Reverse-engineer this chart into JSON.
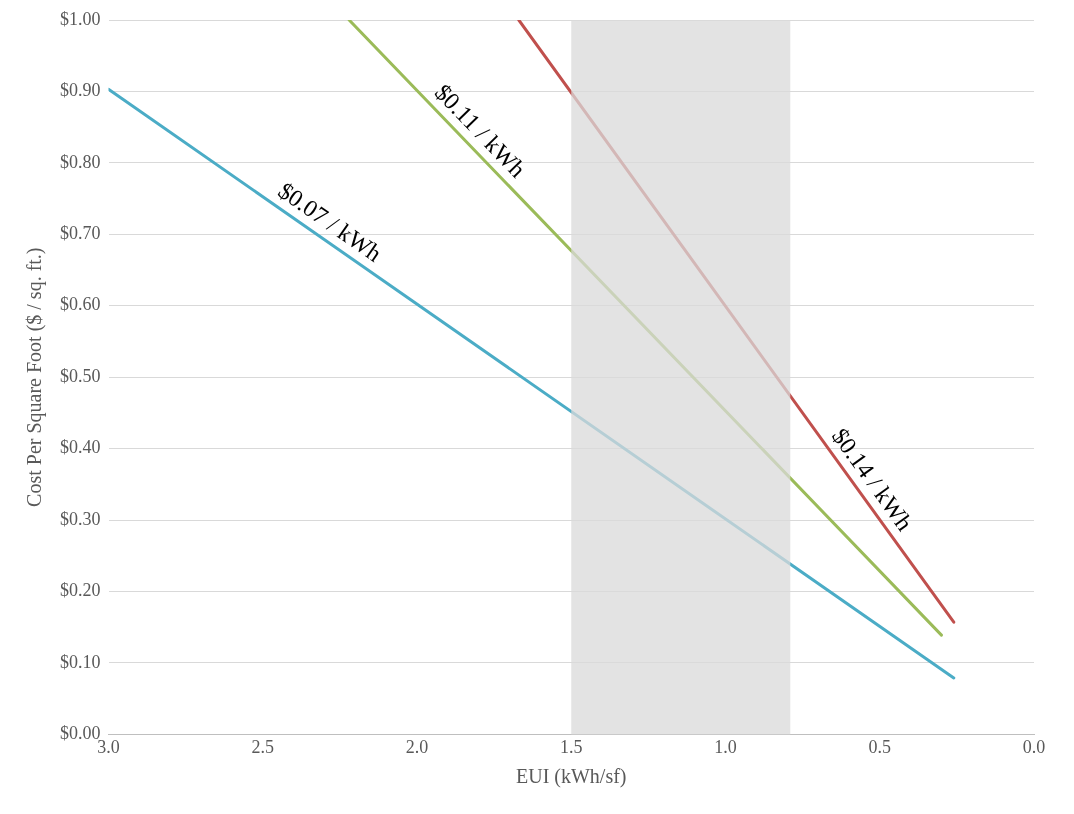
{
  "chart_data": {
    "type": "line",
    "xlabel": "EUI (kWh/sf)",
    "ylabel": "Cost Per Square Foot ($ / sq. ft.)",
    "xlim": [
      3,
      0
    ],
    "ylim": [
      0,
      1
    ],
    "xticks": [
      {
        "value": 3,
        "label": "3.0"
      },
      {
        "value": 2.5,
        "label": "2.5"
      },
      {
        "value": 2,
        "label": "2.0"
      },
      {
        "value": 1.5,
        "label": "1.5"
      },
      {
        "value": 1,
        "label": "1.0"
      },
      {
        "value": 0.5,
        "label": "0.5"
      },
      {
        "value": 0,
        "label": "0.0"
      }
    ],
    "yticks": [
      {
        "value": 0,
        "label": "$0.00"
      },
      {
        "value": 0.1,
        "label": "$0.10"
      },
      {
        "value": 0.2,
        "label": "$0.20"
      },
      {
        "value": 0.3,
        "label": "$0.30"
      },
      {
        "value": 0.4,
        "label": "$0.40"
      },
      {
        "value": 0.5,
        "label": "$0.50"
      },
      {
        "value": 0.6,
        "label": "$0.60"
      },
      {
        "value": 0.7,
        "label": "$0.70"
      },
      {
        "value": 0.8,
        "label": "$0.80"
      },
      {
        "value": 0.9,
        "label": "$0.90"
      },
      {
        "value": 1,
        "label": "$1.00"
      }
    ],
    "grid": "y",
    "marker": "none",
    "line_style": "solid",
    "series": [
      {
        "name": "$0.07 / kWh",
        "color": "#4bacc6",
        "x": [
          3.0,
          0.26
        ],
        "values": [
          0.903,
          0.079
        ]
      },
      {
        "name": "$0.11 / kWh",
        "color": "#9bbb59",
        "x": [
          2.22,
          0.3
        ],
        "values": [
          1.0,
          0.139
        ]
      },
      {
        "name": "$0.14 / kWh",
        "color": "#c0504d",
        "x": [
          1.67,
          0.26
        ],
        "values": [
          1.0,
          0.157
        ]
      }
    ],
    "bands": [
      {
        "axis": "x",
        "from": 1.5,
        "to": 0.79,
        "color": "#d9d9d9"
      }
    ]
  }
}
